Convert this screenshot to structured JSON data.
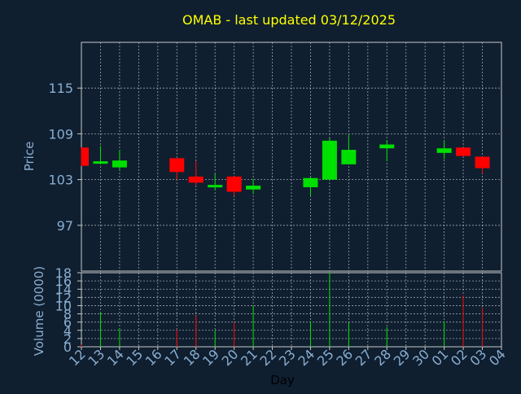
{
  "title": "OMAB - last updated 03/12/2025",
  "colors": {
    "background": "#0f1f30",
    "title": "#ffff00",
    "axis_text": "#8aaed0",
    "label_text": "#000000",
    "frame": "#c8c8c8",
    "grid": "#d0d0d0",
    "up": "#00e000",
    "down": "#ff0000"
  },
  "chart_data": [
    {
      "type": "candlestick",
      "ylabel": "Price",
      "ylim": [
        91,
        121
      ],
      "yticks": [
        97,
        103,
        109,
        115
      ],
      "grid": true,
      "categories": [
        "12",
        "13",
        "14",
        "15",
        "16",
        "17",
        "18",
        "19",
        "20",
        "21",
        "22",
        "23",
        "24",
        "25",
        "26",
        "27",
        "28",
        "29",
        "30",
        "01",
        "02",
        "03",
        "04"
      ],
      "candles": [
        {
          "day": "12",
          "open": 107.2,
          "close": 104.8,
          "high": 107.2,
          "low": 104.8
        },
        {
          "day": "13",
          "open": 105.1,
          "close": 105.4,
          "high": 107.4,
          "low": 105.0
        },
        {
          "day": "14",
          "open": 104.6,
          "close": 105.5,
          "high": 106.9,
          "low": 104.2
        },
        {
          "day": "17",
          "open": 105.8,
          "close": 104.0,
          "high": 105.8,
          "low": 103.0
        },
        {
          "day": "18",
          "open": 103.4,
          "close": 102.6,
          "high": 105.4,
          "low": 102.2
        },
        {
          "day": "19",
          "open": 102.0,
          "close": 102.3,
          "high": 103.8,
          "low": 101.6
        },
        {
          "day": "20",
          "open": 103.4,
          "close": 101.4,
          "high": 103.4,
          "low": 100.9
        },
        {
          "day": "21",
          "open": 101.7,
          "close": 102.2,
          "high": 103.1,
          "low": 101.1
        },
        {
          "day": "24",
          "open": 102.0,
          "close": 103.2,
          "high": 103.3,
          "low": 100.9
        },
        {
          "day": "25",
          "open": 103.0,
          "close": 108.1,
          "high": 108.4,
          "low": 102.9
        },
        {
          "day": "26",
          "open": 105.0,
          "close": 106.9,
          "high": 109.0,
          "low": 105.0
        },
        {
          "day": "28",
          "open": 107.1,
          "close": 107.6,
          "high": 108.2,
          "low": 105.4
        },
        {
          "day": "01",
          "open": 106.5,
          "close": 107.1,
          "high": 108.1,
          "low": 105.7
        },
        {
          "day": "02",
          "open": 107.2,
          "close": 106.1,
          "high": 107.2,
          "low": 106.0
        },
        {
          "day": "03",
          "open": 106.0,
          "close": 104.5,
          "high": 106.0,
          "low": 103.8
        }
      ]
    },
    {
      "type": "bar",
      "ylabel": "Volume (0000)",
      "xlabel": "Day",
      "ylim": [
        0,
        18
      ],
      "yticks": [
        0,
        2,
        4,
        6,
        8,
        10,
        12,
        14,
        16,
        18
      ],
      "grid": true,
      "categories": [
        "12",
        "13",
        "14",
        "15",
        "16",
        "17",
        "18",
        "19",
        "20",
        "21",
        "22",
        "23",
        "24",
        "25",
        "26",
        "27",
        "28",
        "29",
        "30",
        "01",
        "02",
        "03",
        "04"
      ],
      "bars": [
        {
          "day": "12",
          "value": 0.5,
          "direction": "down"
        },
        {
          "day": "13",
          "value": 8.5,
          "direction": "up"
        },
        {
          "day": "14",
          "value": 4.5,
          "direction": "up"
        },
        {
          "day": "17",
          "value": 4.2,
          "direction": "down"
        },
        {
          "day": "18",
          "value": 7.5,
          "direction": "down"
        },
        {
          "day": "19",
          "value": 4.0,
          "direction": "up"
        },
        {
          "day": "20",
          "value": 6.0,
          "direction": "down"
        },
        {
          "day": "21",
          "value": 10.0,
          "direction": "up"
        },
        {
          "day": "24",
          "value": 6.2,
          "direction": "up"
        },
        {
          "day": "25",
          "value": 18.0,
          "direction": "up"
        },
        {
          "day": "26",
          "value": 5.8,
          "direction": "up"
        },
        {
          "day": "28",
          "value": 4.8,
          "direction": "up"
        },
        {
          "day": "01",
          "value": 6.2,
          "direction": "up"
        },
        {
          "day": "02",
          "value": 12.5,
          "direction": "down"
        },
        {
          "day": "03",
          "value": 9.5,
          "direction": "down"
        }
      ]
    }
  ]
}
